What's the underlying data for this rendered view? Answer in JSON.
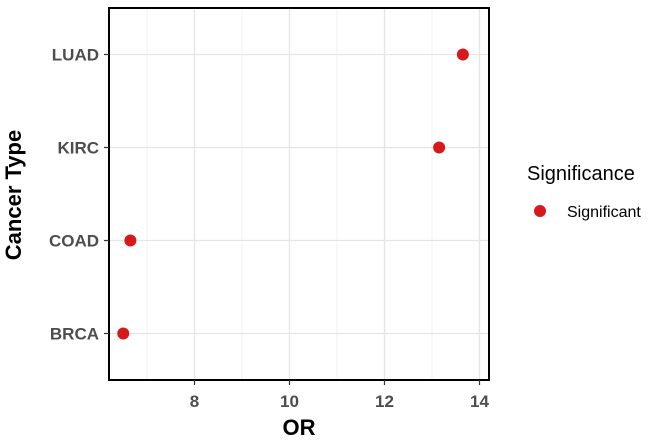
{
  "chart_data": {
    "type": "scatter",
    "title": "",
    "xlabel": "OR",
    "ylabel": "Cancer Type",
    "xlim": [
      6.2,
      14.2
    ],
    "x_ticks": [
      8,
      10,
      12,
      14
    ],
    "x_tick_labels": [
      "8",
      "10",
      "12",
      "14"
    ],
    "categories": [
      "BRCA",
      "COAD",
      "KIRC",
      "LUAD"
    ],
    "grid": true,
    "legend_position": "right",
    "legend_title": "Significance",
    "series": [
      {
        "name": "Significant",
        "color": "#d7191c",
        "points": [
          {
            "category": "LUAD",
            "x": 13.65
          },
          {
            "category": "KIRC",
            "x": 13.15
          },
          {
            "category": "COAD",
            "x": 6.65
          },
          {
            "category": "BRCA",
            "x": 6.5
          }
        ]
      }
    ]
  }
}
